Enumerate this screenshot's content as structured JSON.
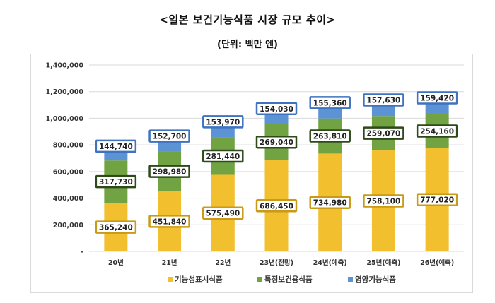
{
  "title": "<일본 보건기능식품 시장 규모 추이>",
  "subtitle": "(단위: 백만 엔)",
  "colors": {
    "yellow": "#F2BF2F",
    "green": "#72A343",
    "blue": "#5B93D5",
    "yellow_border": "#C99A17",
    "green_border": "#2E4A1B",
    "blue_border": "#3F73C0"
  },
  "chart_data": {
    "type": "bar",
    "stacked": true,
    "categories": [
      "20년",
      "21년",
      "22년",
      "23년(전망)",
      "24년(예측)",
      "25년(예측)",
      "26년(예측)"
    ],
    "series": [
      {
        "name": "기능성표시식품",
        "values": [
          365240,
          451840,
          575490,
          686450,
          734980,
          758100,
          777020
        ],
        "labels": [
          "365,240",
          "451,840",
          "575,490",
          "686,450",
          "734,980",
          "758,100",
          "777,020"
        ]
      },
      {
        "name": "특정보건용식품",
        "values": [
          317730,
          298980,
          281440,
          269040,
          263810,
          259070,
          254160
        ],
        "labels": [
          "317,730",
          "298,980",
          "281,440",
          "269,040",
          "263,810",
          "259,070",
          "254,160"
        ]
      },
      {
        "name": "영양기능식품",
        "values": [
          144740,
          152700,
          153970,
          154030,
          155360,
          157630,
          159420
        ],
        "labels": [
          "144,740",
          "152,700",
          "153,970",
          "154,030",
          "155,360",
          "157,630",
          "159,420"
        ]
      }
    ],
    "ylim": [
      0,
      1400000
    ],
    "yticks": [
      0,
      200000,
      400000,
      600000,
      800000,
      1000000,
      1200000,
      1400000
    ],
    "ytick_labels": [
      "-",
      "200,000",
      "400,000",
      "600,000",
      "800,000",
      "1,000,000",
      "1,200,000",
      "1,400,000"
    ],
    "grid": true,
    "legend": "bottom"
  }
}
